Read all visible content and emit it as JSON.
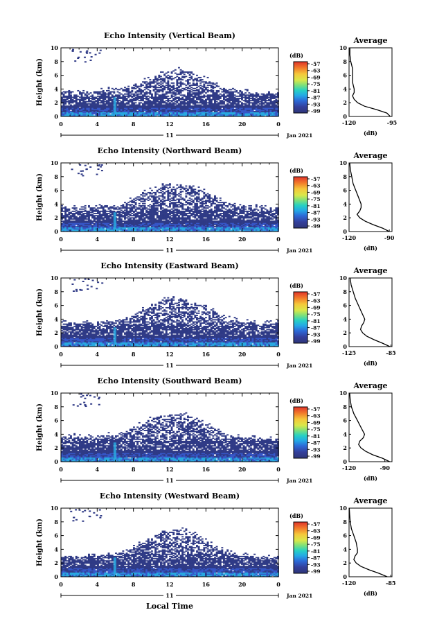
{
  "page": {
    "xlabel": "Local Time",
    "date_label": "Jan 2021",
    "day_label": "11",
    "colorbar_unit": "(dB)",
    "colorbar_ticks": [
      "-57",
      "-63",
      "-69",
      "-75",
      "-81",
      "-87",
      "-93",
      "-99"
    ],
    "avg_title": "Average",
    "avg_xlabel": "(dB)",
    "ylabel": "Height (km)"
  },
  "colors": {
    "cloud_dark": "#2f3a86",
    "cloud_mid": "#3656c8",
    "cloud_light": "#29a9e0",
    "colorbar": [
      "#e0332a",
      "#f27a2a",
      "#f5c83a",
      "#d9e84a",
      "#7be07c",
      "#26d0c4",
      "#24a8e6",
      "#2c6ad8",
      "#333f9c",
      "#2e3678"
    ]
  },
  "chart_data": [
    {
      "type": "heatmap",
      "title": "Echo Intensity (Vertical Beam)",
      "x_ticks": [
        "0",
        "4",
        "8",
        "12",
        "16",
        "20",
        "0"
      ],
      "y_ticks": [
        "0",
        "2",
        "4",
        "6",
        "8",
        "10"
      ],
      "xlim": [
        0,
        24
      ],
      "ylim": [
        0,
        10
      ],
      "cloud_top_km": [
        3.5,
        3.6,
        3.4,
        3.5,
        3.6,
        3.8,
        3.6,
        4.0,
        4.4,
        5.0,
        5.6,
        6.2,
        6.5,
        6.8,
        6.6,
        6.0,
        5.3,
        4.6,
        4.0,
        3.6,
        3.5,
        3.4,
        3.3,
        3.2,
        3.4
      ],
      "average": {
        "xticks": [
          "-120",
          "-95"
        ],
        "xlim": [
          -120,
          -95
        ],
        "heights": [
          0,
          0.5,
          1,
          1.5,
          2,
          2.5,
          3,
          3.5,
          4,
          5,
          6,
          7,
          8,
          9,
          10
        ],
        "values": [
          -96,
          -98,
          -104,
          -111,
          -115,
          -117,
          -118,
          -117,
          -117,
          -118,
          -118,
          -118,
          -119,
          -119.5,
          -119.5
        ]
      }
    },
    {
      "type": "heatmap",
      "title": "Echo Intensity (Northward Beam)",
      "x_ticks": [
        "0",
        "4",
        "8",
        "12",
        "16",
        "20",
        "0"
      ],
      "y_ticks": [
        "0",
        "2",
        "4",
        "6",
        "8",
        "10"
      ],
      "xlim": [
        0,
        24
      ],
      "ylim": [
        0,
        10
      ],
      "cloud_top_km": [
        3.4,
        3.5,
        3.3,
        3.4,
        3.5,
        3.6,
        3.5,
        4.0,
        4.8,
        5.5,
        6.0,
        6.5,
        6.8,
        6.8,
        6.6,
        6.2,
        5.6,
        4.8,
        4.2,
        3.8,
        3.6,
        3.5,
        3.4,
        3.3,
        3.4
      ],
      "average": {
        "xticks": [
          "-120",
          "-90"
        ],
        "xlim": [
          -120,
          -88
        ],
        "heights": [
          0,
          0.5,
          1,
          1.5,
          2,
          2.5,
          3,
          3.5,
          4,
          5,
          6,
          7,
          8,
          9,
          10
        ],
        "values": [
          -90,
          -95,
          -102,
          -108,
          -112,
          -114,
          -112,
          -111,
          -111,
          -113,
          -115,
          -117,
          -118,
          -119,
          -119.5
        ]
      }
    },
    {
      "type": "heatmap",
      "title": "Echo Intensity (Eastward Beam)",
      "x_ticks": [
        "0",
        "4",
        "8",
        "12",
        "16",
        "20",
        "0"
      ],
      "y_ticks": [
        "0",
        "2",
        "4",
        "6",
        "8",
        "10"
      ],
      "xlim": [
        0,
        24
      ],
      "ylim": [
        0,
        10
      ],
      "cloud_top_km": [
        3.3,
        3.4,
        3.3,
        3.4,
        3.5,
        3.6,
        3.5,
        4.0,
        4.6,
        5.4,
        6.0,
        6.6,
        6.9,
        6.8,
        6.6,
        6.2,
        5.6,
        4.8,
        4.2,
        3.8,
        3.5,
        3.4,
        3.3,
        3.3,
        3.4
      ],
      "average": {
        "xticks": [
          "-125",
          "-85"
        ],
        "xlim": [
          -125,
          -84
        ],
        "heights": [
          0,
          0.5,
          1,
          1.5,
          2,
          2.5,
          3,
          3.5,
          4,
          5,
          6,
          7,
          8,
          9,
          10
        ],
        "values": [
          -86,
          -93,
          -101,
          -108,
          -112,
          -114,
          -113,
          -111,
          -110,
          -113,
          -116,
          -119,
          -121,
          -123,
          -124
        ]
      }
    },
    {
      "type": "heatmap",
      "title": "Echo Intensity (Southward Beam)",
      "x_ticks": [
        "0",
        "4",
        "8",
        "12",
        "16",
        "20",
        "0"
      ],
      "y_ticks": [
        "0",
        "2",
        "4",
        "6",
        "8",
        "10"
      ],
      "xlim": [
        0,
        24
      ],
      "ylim": [
        0,
        10
      ],
      "cloud_top_km": [
        3.6,
        3.7,
        3.5,
        3.6,
        3.7,
        3.8,
        3.7,
        4.1,
        4.8,
        5.6,
        6.2,
        6.6,
        6.8,
        6.8,
        6.6,
        6.0,
        5.4,
        4.6,
        4.0,
        3.6,
        3.5,
        3.4,
        3.3,
        3.3,
        3.4
      ],
      "average": {
        "xticks": [
          "-120",
          "-90"
        ],
        "xlim": [
          -120,
          -84
        ],
        "heights": [
          0,
          0.5,
          1,
          1.5,
          2,
          2.5,
          3,
          3.5,
          4,
          5,
          6,
          7,
          8,
          9,
          10
        ],
        "values": [
          -86,
          -92,
          -100,
          -106,
          -110,
          -112,
          -111,
          -108,
          -107,
          -110,
          -113,
          -116,
          -118,
          -119,
          -119.5
        ]
      }
    },
    {
      "type": "heatmap",
      "title": "Echo Intensity (Westward Beam)",
      "x_ticks": [
        "0",
        "4",
        "8",
        "12",
        "16",
        "20",
        "0"
      ],
      "y_ticks": [
        "0",
        "2",
        "4",
        "6",
        "8",
        "10"
      ],
      "xlim": [
        0,
        24
      ],
      "ylim": [
        0,
        10
      ],
      "cloud_top_km": [
        2.8,
        2.9,
        2.8,
        2.9,
        3.0,
        3.1,
        3.2,
        3.6,
        4.2,
        5.0,
        5.8,
        6.4,
        6.8,
        6.8,
        6.5,
        6.0,
        5.0,
        4.2,
        3.6,
        3.2,
        3.0,
        2.9,
        2.8,
        2.7,
        2.8
      ],
      "average": {
        "xticks": [
          "-120",
          "-85"
        ],
        "xlim": [
          -120,
          -84
        ],
        "heights": [
          0,
          0.5,
          1,
          1.5,
          2,
          2.5,
          3,
          3.5,
          4,
          5,
          6,
          7,
          8,
          9,
          10
        ],
        "values": [
          -88,
          -95,
          -103,
          -110,
          -114,
          -116,
          -115,
          -113,
          -113,
          -114,
          -116,
          -118,
          -119,
          -119.5,
          -119.8
        ]
      }
    }
  ]
}
